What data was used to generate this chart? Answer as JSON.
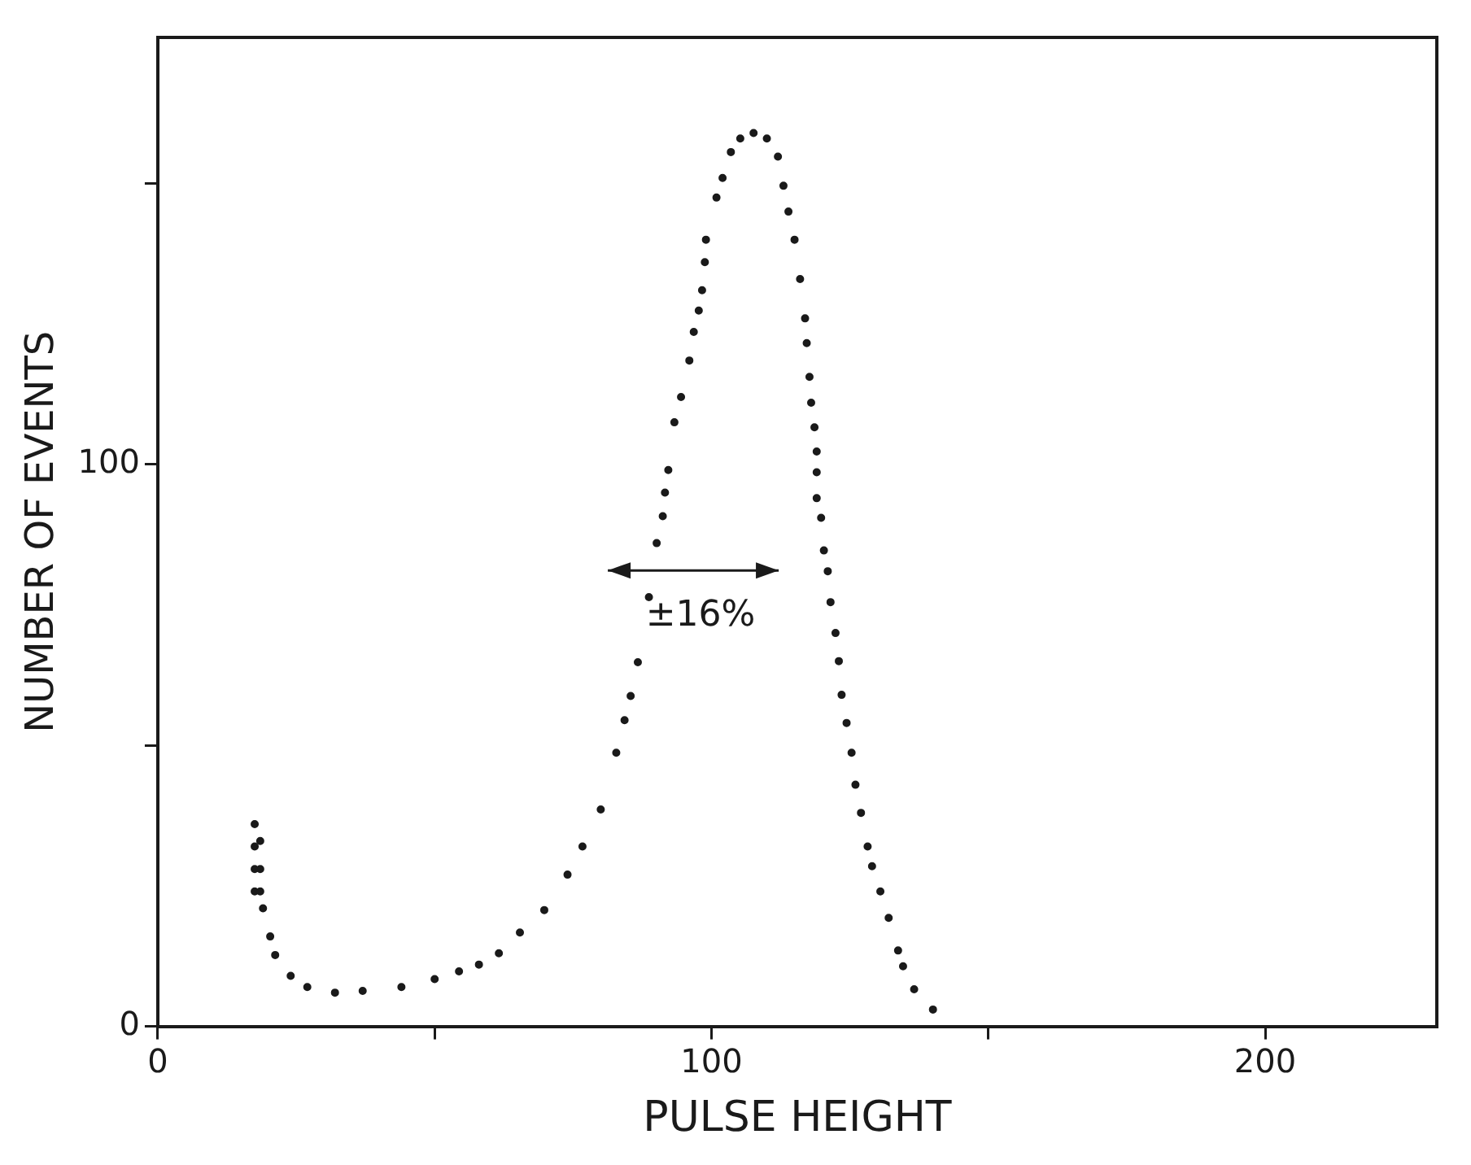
{
  "chart_data": {
    "type": "scatter",
    "xlabel": "PULSE HEIGHT",
    "ylabel": "NUMBER OF EVENTS",
    "series": [
      {
        "color": "#1a1a1a",
        "x": [
          17.5,
          17.5,
          17.5,
          17.5,
          18.5,
          18.5,
          18.5,
          19,
          20.3,
          21.2,
          24,
          27,
          32,
          37,
          44,
          50,
          54.4,
          58,
          61.6,
          65.4,
          69.8,
          74,
          76.7,
          80,
          82.8,
          84.3,
          85.4,
          86.7,
          88.7,
          90.1,
          91.2,
          91.6,
          92.2,
          93.3,
          94.5,
          96,
          96.8,
          97.7,
          98.3,
          98.8,
          99,
          100.9,
          102,
          103.5,
          105.2,
          107.6,
          110,
          112,
          113,
          113.9,
          115,
          116,
          116.9,
          117.2,
          117.7,
          118,
          118.6,
          119,
          119,
          119,
          119.8,
          120.3,
          121,
          121.5,
          122.4,
          123,
          123.5,
          124.4,
          125.3,
          126,
          127,
          128.2,
          129,
          130.5,
          132,
          133.7,
          134.6,
          136.6,
          140
        ],
        "values": [
          36,
          32,
          28,
          24,
          33,
          28,
          24,
          21,
          16,
          12.7,
          9,
          7,
          6,
          6.3,
          7,
          8.4,
          9.8,
          11,
          13,
          16.7,
          20.7,
          27,
          32,
          38.6,
          48.7,
          54.5,
          58.8,
          64.8,
          76.4,
          86,
          90.8,
          95,
          99,
          107.5,
          112,
          118.5,
          123.6,
          127.4,
          131,
          136,
          140,
          147.5,
          151,
          155.6,
          158,
          159,
          158,
          154.8,
          149.6,
          145,
          140,
          133,
          126,
          121.6,
          115.6,
          111,
          106.6,
          102.3,
          98.6,
          94,
          90.5,
          84.7,
          81,
          75.5,
          70,
          65,
          59,
          54,
          48.7,
          43,
          38,
          32,
          28.5,
          24,
          19.3,
          13.5,
          10.7,
          6.6,
          3
        ]
      }
    ],
    "xlim": [
      0,
      231
    ],
    "xticks": [
      0,
      {
        "value": 50,
        "label": null
      },
      100,
      {
        "value": 150,
        "label": null
      },
      200
    ],
    "ylim": [
      0,
      176
    ],
    "yticks": [
      0,
      {
        "value": 50,
        "label": null
      },
      100,
      {
        "value": 150,
        "label": null
      }
    ],
    "marker": "circle",
    "grid": false,
    "legend": false,
    "annotations": [
      "±16%"
    ]
  }
}
